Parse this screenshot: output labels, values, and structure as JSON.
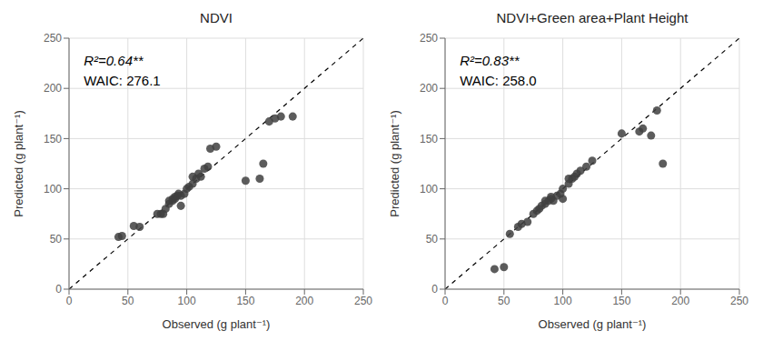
{
  "chart_data": [
    {
      "type": "scatter",
      "title": "NDVI",
      "annotations": [
        "R²=0.64**",
        "WAIC: 276.1"
      ],
      "xlabel": "Observed (g plant⁻¹)",
      "ylabel": "Predicted (g plant⁻¹)",
      "x": [
        42,
        45,
        55,
        60,
        75,
        78,
        80,
        82,
        85,
        85,
        88,
        88,
        90,
        90,
        92,
        93,
        95,
        95,
        98,
        100,
        102,
        105,
        105,
        108,
        110,
        112,
        115,
        118,
        120,
        125,
        150,
        162,
        165,
        170,
        175,
        180,
        190
      ],
      "values": [
        52,
        53,
        63,
        62,
        75,
        75,
        75,
        80,
        85,
        88,
        88,
        90,
        90,
        92,
        93,
        95,
        83,
        93,
        95,
        100,
        102,
        105,
        112,
        110,
        115,
        112,
        120,
        122,
        140,
        142,
        108,
        110,
        125,
        167,
        170,
        172,
        172
      ],
      "color": "#404040",
      "xlim": [
        0,
        250
      ],
      "ylim": [
        0,
        250
      ],
      "xticks": [
        0,
        50,
        100,
        150,
        200,
        250
      ],
      "yticks": [
        0,
        50,
        100,
        150,
        200,
        250
      ],
      "grid": true
    },
    {
      "type": "scatter",
      "title": "NDVI+Green area+Plant Height",
      "annotations": [
        "R²=0.83**",
        "WAIC: 258.0"
      ],
      "xlabel": "Observed (g plant⁻¹)",
      "ylabel": "Predicted (g plant⁻¹)",
      "x": [
        42,
        50,
        55,
        62,
        65,
        70,
        75,
        78,
        80,
        82,
        85,
        85,
        88,
        90,
        90,
        92,
        95,
        98,
        100,
        100,
        105,
        105,
        108,
        110,
        112,
        115,
        120,
        125,
        150,
        165,
        168,
        175,
        180,
        185
      ],
      "values": [
        20,
        22,
        55,
        62,
        65,
        67,
        75,
        78,
        80,
        83,
        85,
        88,
        88,
        90,
        92,
        88,
        93,
        95,
        90,
        100,
        105,
        110,
        110,
        112,
        115,
        118,
        122,
        128,
        155,
        157,
        160,
        153,
        178,
        125
      ],
      "color": "#404040",
      "xlim": [
        0,
        250
      ],
      "ylim": [
        0,
        250
      ],
      "xticks": [
        0,
        50,
        100,
        150,
        200,
        250
      ],
      "yticks": [
        0,
        50,
        100,
        150,
        200,
        250
      ],
      "grid": true
    }
  ]
}
